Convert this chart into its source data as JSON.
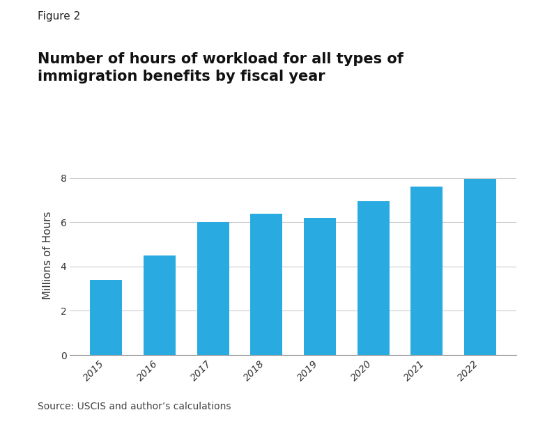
{
  "categories": [
    "2015",
    "2016",
    "2017",
    "2018",
    "2019",
    "2020",
    "2021",
    "2022"
  ],
  "values": [
    3.4,
    4.5,
    6.0,
    6.4,
    6.2,
    6.95,
    7.6,
    7.95
  ],
  "bar_color": "#29ABE2",
  "figure_label": "Figure 2",
  "title_line1": "Number of hours of workload for all types of",
  "title_line2": "immigration benefits by fiscal year",
  "ylabel": "Millions of Hours",
  "ylim": [
    0,
    9
  ],
  "yticks": [
    0,
    2,
    4,
    6,
    8
  ],
  "source_text": "Source: USCIS and author’s calculations",
  "background_color": "#ffffff",
  "grid_color": "#cccccc",
  "title_fontsize": 15,
  "label_fontsize": 11,
  "tick_fontsize": 10,
  "figure_label_fontsize": 11,
  "source_fontsize": 10
}
